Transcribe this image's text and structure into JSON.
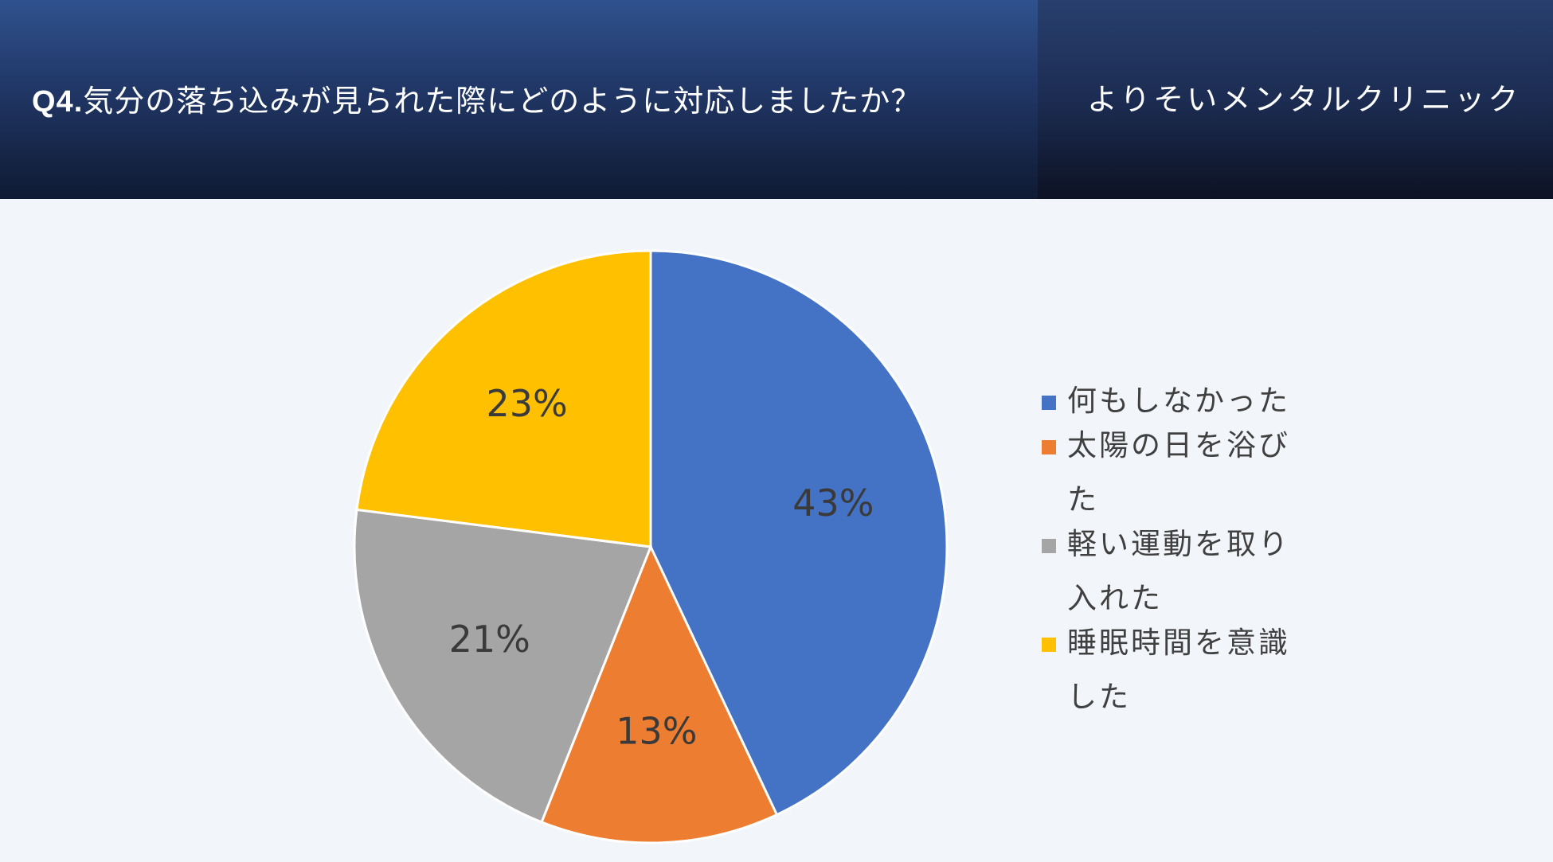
{
  "header": {
    "question_label": "Q4.",
    "question_text": "気分の落ち込みが見られた際にどのように対応しましたか？",
    "clinic_name": "よりそいメンタルクリニック"
  },
  "chart_data": {
    "type": "pie",
    "title": "",
    "slices": [
      {
        "label": "何もしなかった",
        "value": 43,
        "value_label": "43%",
        "color": "#4472c4"
      },
      {
        "label": "太陽の日を浴びた",
        "value": 13,
        "value_label": "13%",
        "color": "#ed7d31"
      },
      {
        "label": "軽い運動を取り入れた",
        "value": 21,
        "value_label": "21%",
        "color": "#a5a5a5"
      },
      {
        "label": "睡眠時間を意識した",
        "value": 23,
        "value_label": "23%",
        "color": "#ffc000"
      }
    ],
    "start_angle": "12 o'clock",
    "direction": "clockwise",
    "legend_position": "right"
  }
}
